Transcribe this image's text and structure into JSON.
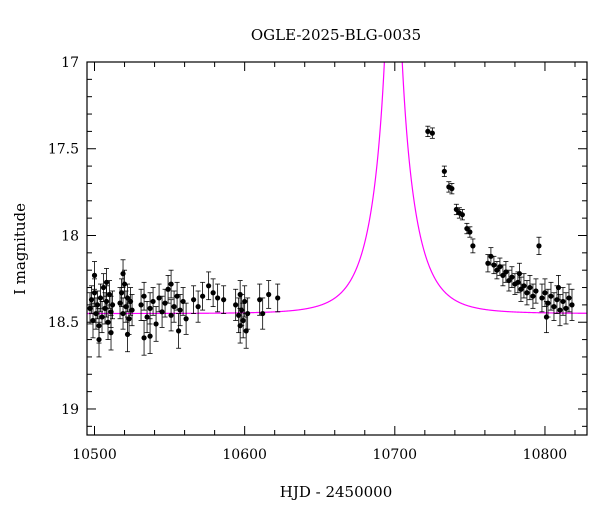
{
  "chart_data": {
    "type": "scatter",
    "title": "OGLE-2025-BLG-0035",
    "xlabel": "HJD - 2450000",
    "ylabel": "I magnitude",
    "xlim": [
      10495,
      10828
    ],
    "ylim": [
      19.15,
      17.0
    ],
    "y_inverted": true,
    "x_ticks": [
      10500,
      10600,
      10700,
      10800
    ],
    "y_ticks": [
      17,
      17.5,
      18,
      18.5,
      19
    ],
    "y_tick_labels": [
      "17",
      "17.5",
      "18",
      "18.5",
      "19"
    ],
    "grid": false,
    "series": [
      {
        "kind": "points_with_errorbars",
        "color": "#000000",
        "points": [
          [
            10497,
            18.42,
            0.09
          ],
          [
            10498,
            18.37,
            0.08
          ],
          [
            10499,
            18.49,
            0.1
          ],
          [
            10500,
            18.33,
            0.08
          ],
          [
            10501,
            18.45,
            0.09
          ],
          [
            10502,
            18.4,
            0.08
          ],
          [
            10503,
            18.52,
            0.1
          ],
          [
            10504,
            18.36,
            0.08
          ],
          [
            10505,
            18.47,
            0.09
          ],
          [
            10506,
            18.3,
            0.08
          ],
          [
            10507,
            18.42,
            0.09
          ],
          [
            10508,
            18.38,
            0.09
          ],
          [
            10509,
            18.5,
            0.1
          ],
          [
            10510,
            18.34,
            0.08
          ],
          [
            10511,
            18.44,
            0.09
          ],
          [
            10512,
            18.4,
            0.08
          ],
          [
            10500,
            18.23,
            0.08
          ],
          [
            10503,
            18.6,
            0.1
          ],
          [
            10508,
            18.27,
            0.08
          ],
          [
            10511,
            18.56,
            0.1
          ],
          [
            10517,
            18.39,
            0.09
          ],
          [
            10518,
            18.33,
            0.08
          ],
          [
            10519,
            18.45,
            0.09
          ],
          [
            10520,
            18.28,
            0.08
          ],
          [
            10521,
            18.41,
            0.09
          ],
          [
            10522,
            18.36,
            0.08
          ],
          [
            10523,
            18.48,
            0.09
          ],
          [
            10524,
            18.38,
            0.08
          ],
          [
            10525,
            18.43,
            0.09
          ],
          [
            10519,
            18.22,
            0.08
          ],
          [
            10522,
            18.57,
            0.1
          ],
          [
            10531,
            18.4,
            0.09
          ],
          [
            10533,
            18.35,
            0.08
          ],
          [
            10535,
            18.47,
            0.09
          ],
          [
            10537,
            18.42,
            0.09
          ],
          [
            10539,
            18.38,
            0.08
          ],
          [
            10541,
            18.51,
            0.1
          ],
          [
            10533,
            18.59,
            0.1
          ],
          [
            10537,
            18.58,
            0.1
          ],
          [
            10543,
            18.36,
            0.08
          ],
          [
            10545,
            18.44,
            0.09
          ],
          [
            10547,
            18.39,
            0.08
          ],
          [
            10549,
            18.31,
            0.08
          ],
          [
            10551,
            18.46,
            0.09
          ],
          [
            10553,
            18.41,
            0.09
          ],
          [
            10555,
            18.35,
            0.08
          ],
          [
            10557,
            18.43,
            0.09
          ],
          [
            10559,
            18.38,
            0.08
          ],
          [
            10561,
            18.48,
            0.09
          ],
          [
            10551,
            18.28,
            0.08
          ],
          [
            10556,
            18.55,
            0.1
          ],
          [
            10566,
            18.37,
            0.08
          ],
          [
            10569,
            18.41,
            0.09
          ],
          [
            10572,
            18.35,
            0.08
          ],
          [
            10576,
            18.29,
            0.08
          ],
          [
            10579,
            18.33,
            0.08
          ],
          [
            10582,
            18.36,
            0.08
          ],
          [
            10586,
            18.37,
            0.08
          ],
          [
            10594,
            18.4,
            0.09
          ],
          [
            10596,
            18.46,
            0.1
          ],
          [
            10597,
            18.52,
            0.1
          ],
          [
            10598,
            18.43,
            0.09
          ],
          [
            10599,
            18.49,
            0.1
          ],
          [
            10600,
            18.38,
            0.09
          ],
          [
            10601,
            18.55,
            0.1
          ],
          [
            10602,
            18.45,
            0.09
          ],
          [
            10597,
            18.34,
            0.08
          ],
          [
            10610,
            18.37,
            0.09
          ],
          [
            10612,
            18.45,
            0.09
          ],
          [
            10616,
            18.34,
            0.08
          ],
          [
            10622,
            18.36,
            0.08
          ],
          [
            10722,
            17.4,
            0.03
          ],
          [
            10725,
            17.41,
            0.03
          ],
          [
            10733,
            17.63,
            0.03
          ],
          [
            10736,
            17.72,
            0.03
          ],
          [
            10738,
            17.73,
            0.03
          ],
          [
            10741,
            17.85,
            0.03
          ],
          [
            10743,
            17.87,
            0.03
          ],
          [
            10745,
            17.88,
            0.03
          ],
          [
            10748,
            17.96,
            0.03
          ],
          [
            10750,
            17.98,
            0.03
          ],
          [
            10752,
            18.06,
            0.04
          ],
          [
            10762,
            18.16,
            0.05
          ],
          [
            10764,
            18.12,
            0.05
          ],
          [
            10766,
            18.17,
            0.05
          ],
          [
            10768,
            18.2,
            0.05
          ],
          [
            10770,
            18.18,
            0.05
          ],
          [
            10772,
            18.23,
            0.06
          ],
          [
            10774,
            18.21,
            0.06
          ],
          [
            10776,
            18.26,
            0.06
          ],
          [
            10778,
            18.24,
            0.06
          ],
          [
            10780,
            18.28,
            0.06
          ],
          [
            10782,
            18.27,
            0.06
          ],
          [
            10784,
            18.31,
            0.07
          ],
          [
            10786,
            18.29,
            0.07
          ],
          [
            10788,
            18.33,
            0.07
          ],
          [
            10790,
            18.3,
            0.07
          ],
          [
            10792,
            18.35,
            0.07
          ],
          [
            10794,
            18.32,
            0.07
          ],
          [
            10796,
            18.06,
            0.05
          ],
          [
            10798,
            18.36,
            0.08
          ],
          [
            10800,
            18.33,
            0.08
          ],
          [
            10802,
            18.39,
            0.08
          ],
          [
            10804,
            18.35,
            0.08
          ],
          [
            10806,
            18.41,
            0.08
          ],
          [
            10808,
            18.37,
            0.08
          ],
          [
            10810,
            18.43,
            0.09
          ],
          [
            10812,
            18.38,
            0.08
          ],
          [
            10814,
            18.42,
            0.09
          ],
          [
            10816,
            18.36,
            0.08
          ],
          [
            10818,
            18.4,
            0.09
          ],
          [
            10783,
            18.22,
            0.06
          ],
          [
            10801,
            18.47,
            0.09
          ],
          [
            10809,
            18.3,
            0.07
          ]
        ]
      },
      {
        "kind": "model_curve",
        "color": "#ff00ff",
        "model": {
          "baseline": 18.45,
          "t0": 10699,
          "tE": 22,
          "u0": 0.006
        },
        "x_range": [
          10495,
          10828
        ]
      }
    ]
  }
}
